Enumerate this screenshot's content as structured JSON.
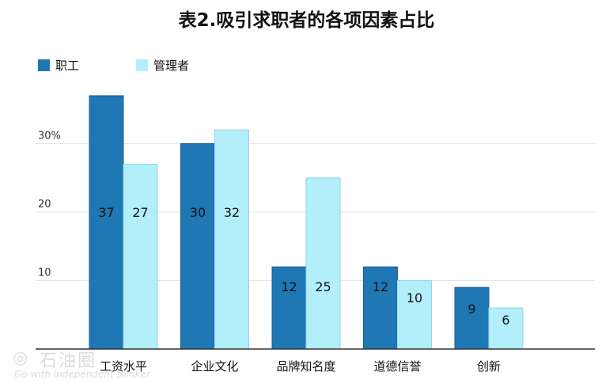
{
  "chart_data": {
    "type": "bar",
    "title": "表2.吸引求职者的各项因素占比",
    "categories": [
      "工资水平",
      "企业文化",
      "品牌知名度",
      "道德信誉",
      "创新"
    ],
    "series": [
      {
        "name": "职工",
        "color": "#1f77b4",
        "values": [
          37,
          30,
          12,
          12,
          9
        ]
      },
      {
        "name": "管理者",
        "color": "#b3eefb",
        "values": [
          27,
          32,
          25,
          10,
          6
        ]
      }
    ],
    "y_ticks": [
      {
        "value": 10,
        "label": "10"
      },
      {
        "value": 20,
        "label": "20"
      },
      {
        "value": 30,
        "label": "30%"
      }
    ],
    "ylim": [
      0,
      40
    ],
    "grid": true,
    "legend_position": "top-left",
    "data_labels": true
  },
  "watermark": {
    "mark": "◎",
    "name": "石油圈",
    "tagline": "Go with independent thinker"
  }
}
